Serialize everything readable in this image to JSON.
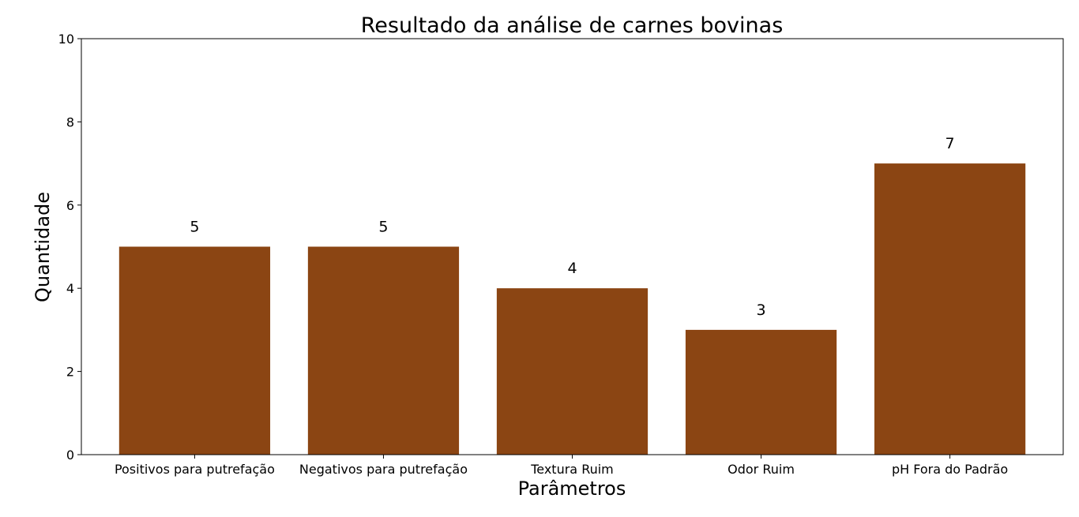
{
  "chart_data": {
    "type": "bar",
    "title": "Resultado da análise de carnes bovinas",
    "xlabel": "Parâmetros",
    "ylabel": "Quantidade",
    "categories": [
      "Positivos para putrefação",
      "Negativos para putrefação",
      "Textura Ruim",
      "Odor Ruim",
      "pH Fora do Padrão"
    ],
    "values": [
      5,
      5,
      4,
      3,
      7
    ],
    "data_labels": [
      "5",
      "5",
      "4",
      "3",
      "7"
    ],
    "ylim": [
      0,
      10
    ],
    "yticks": [
      0,
      2,
      4,
      6,
      8,
      10
    ],
    "ytick_labels": [
      "0",
      "2",
      "4",
      "6",
      "8",
      "10"
    ],
    "bar_color": "#8B4513",
    "grid": false,
    "legend": "none"
  }
}
